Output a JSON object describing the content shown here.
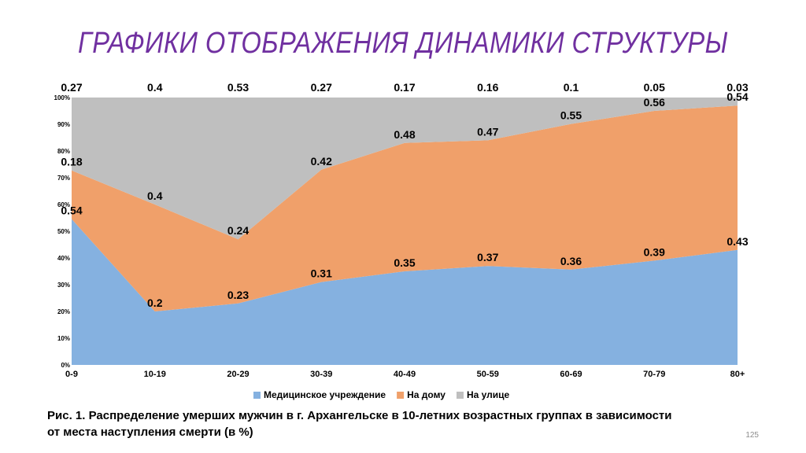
{
  "slide": {
    "title": "ГРАФИКИ ОТОБРАЖЕНИЯ ДИНАМИКИ СТРУКТУРЫ",
    "caption_line1": "Рис. 1. Распределение умерших мужчин в г. Архангельске в 10-летних возрастных группах в зависимости",
    "caption_line2": "от места наступления смерти (в %)",
    "page_number": "125"
  },
  "chart_data": {
    "type": "area",
    "stacked": "percent",
    "categories": [
      "0-9",
      "10-19",
      "20-29",
      "30-39",
      "40-49",
      "50-59",
      "60-69",
      "70-79",
      "80+"
    ],
    "y_ticks": [
      "0%",
      "10%",
      "20%",
      "30%",
      "40%",
      "50%",
      "60%",
      "70%",
      "80%",
      "90%",
      "100%"
    ],
    "ylim": [
      0,
      100
    ],
    "grid": false,
    "legend_position": "bottom",
    "series": [
      {
        "name": "Медицинское учреждение",
        "color": "#85b1e0",
        "values": [
          0.54,
          0.2,
          0.23,
          0.31,
          0.35,
          0.37,
          0.36,
          0.39,
          0.43
        ]
      },
      {
        "name": "На дому",
        "color": "#f0a06a",
        "values": [
          0.18,
          0.4,
          0.24,
          0.42,
          0.48,
          0.47,
          0.55,
          0.56,
          0.54
        ]
      },
      {
        "name": "На улице",
        "color": "#bfbfbf",
        "values": [
          0.27,
          0.4,
          0.53,
          0.27,
          0.17,
          0.16,
          0.1,
          0.05,
          0.03
        ]
      }
    ]
  }
}
